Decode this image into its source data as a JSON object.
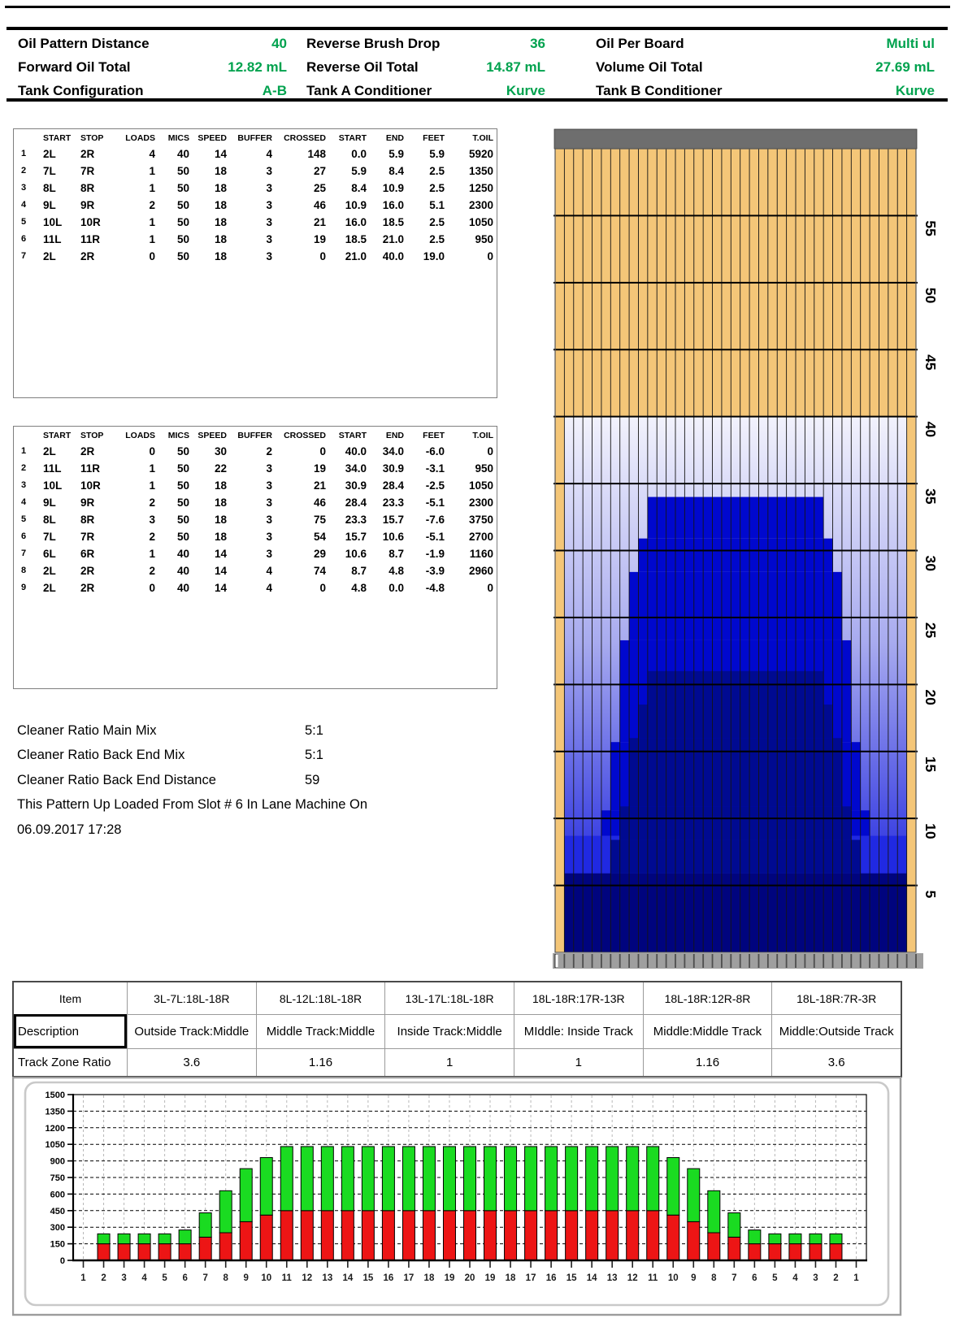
{
  "header": {
    "value_color": "#00A24E",
    "cells": [
      {
        "label": "Oil Pattern Distance",
        "value": "40"
      },
      {
        "label": "Reverse Brush Drop",
        "value": "36"
      },
      {
        "label": "Oil Per Board",
        "value": "Multi ul"
      },
      {
        "label": "Forward Oil Total",
        "value": "12.82 mL"
      },
      {
        "label": "Reverse Oil Total",
        "value": "14.87 mL"
      },
      {
        "label": "Volume Oil Total",
        "value": "27.69 mL"
      },
      {
        "label": "Tank Configuration",
        "value": "A-B"
      },
      {
        "label": "Tank A Conditioner",
        "value": "Kurve"
      },
      {
        "label": "Tank B Conditioner",
        "value": "Kurve"
      }
    ]
  },
  "forward_table": {
    "headers": [
      "",
      "START",
      "STOP",
      "LOADS",
      "MICS",
      "SPEED",
      "BUFFER",
      "CROSSED",
      "START",
      "END",
      "FEET",
      "T.OIL"
    ],
    "rows": [
      [
        "1",
        "2L",
        "2R",
        "4",
        "40",
        "14",
        "4",
        "148",
        "0.0",
        "5.9",
        "5.9",
        "5920"
      ],
      [
        "2",
        "7L",
        "7R",
        "1",
        "50",
        "18",
        "3",
        "27",
        "5.9",
        "8.4",
        "2.5",
        "1350"
      ],
      [
        "3",
        "8L",
        "8R",
        "1",
        "50",
        "18",
        "3",
        "25",
        "8.4",
        "10.9",
        "2.5",
        "1250"
      ],
      [
        "4",
        "9L",
        "9R",
        "2",
        "50",
        "18",
        "3",
        "46",
        "10.9",
        "16.0",
        "5.1",
        "2300"
      ],
      [
        "5",
        "10L",
        "10R",
        "1",
        "50",
        "18",
        "3",
        "21",
        "16.0",
        "18.5",
        "2.5",
        "1050"
      ],
      [
        "6",
        "11L",
        "11R",
        "1",
        "50",
        "18",
        "3",
        "19",
        "18.5",
        "21.0",
        "2.5",
        "950"
      ],
      [
        "7",
        "2L",
        "2R",
        "0",
        "50",
        "18",
        "3",
        "0",
        "21.0",
        "40.0",
        "19.0",
        "0"
      ]
    ]
  },
  "reverse_table": {
    "headers": [
      "",
      "START",
      "STOP",
      "LOADS",
      "MICS",
      "SPEED",
      "BUFFER",
      "CROSSED",
      "START",
      "END",
      "FEET",
      "T.OIL"
    ],
    "rows": [
      [
        "1",
        "2L",
        "2R",
        "0",
        "50",
        "30",
        "2",
        "0",
        "40.0",
        "34.0",
        "-6.0",
        "0"
      ],
      [
        "2",
        "11L",
        "11R",
        "1",
        "50",
        "22",
        "3",
        "19",
        "34.0",
        "30.9",
        "-3.1",
        "950"
      ],
      [
        "3",
        "10L",
        "10R",
        "1",
        "50",
        "18",
        "3",
        "21",
        "30.9",
        "28.4",
        "-2.5",
        "1050"
      ],
      [
        "4",
        "9L",
        "9R",
        "2",
        "50",
        "18",
        "3",
        "46",
        "28.4",
        "23.3",
        "-5.1",
        "2300"
      ],
      [
        "5",
        "8L",
        "8R",
        "3",
        "50",
        "18",
        "3",
        "75",
        "23.3",
        "15.7",
        "-7.6",
        "3750"
      ],
      [
        "6",
        "7L",
        "7R",
        "2",
        "50",
        "18",
        "3",
        "54",
        "15.7",
        "10.6",
        "-5.1",
        "2700"
      ],
      [
        "7",
        "6L",
        "6R",
        "1",
        "40",
        "14",
        "3",
        "29",
        "10.6",
        "8.7",
        "-1.9",
        "1160"
      ],
      [
        "8",
        "2L",
        "2R",
        "2",
        "40",
        "14",
        "4",
        "74",
        "8.7",
        "4.8",
        "-3.9",
        "2960"
      ],
      [
        "9",
        "2L",
        "2R",
        "0",
        "40",
        "14",
        "4",
        "0",
        "4.8",
        "0.0",
        "-4.8",
        "0"
      ]
    ]
  },
  "cleaner": {
    "items": [
      {
        "label": "Cleaner Ratio Main Mix",
        "value": "5:1"
      },
      {
        "label": "Cleaner Ratio Back End Mix",
        "value": "5:1"
      },
      {
        "label": "Cleaner Ratio Back End Distance",
        "value": "59"
      }
    ],
    "note_line1": "This Pattern Up Loaded From Slot # 6 In Lane Machine On",
    "note_line2": "06.09.2017 17:28"
  },
  "zone_table": {
    "item_label": "Item",
    "desc_label": "Description",
    "ratio_label": "Track Zone Ratio",
    "columns": [
      {
        "item": "3L-7L:18L-18R",
        "desc": "Outside Track:Middle",
        "ratio": "3.6"
      },
      {
        "item": "8L-12L:18L-18R",
        "desc": "Middle Track:Middle",
        "ratio": "1.16"
      },
      {
        "item": "13L-17L:18L-18R",
        "desc": "Inside Track:Middle",
        "ratio": "1"
      },
      {
        "item": "18L-18R:17R-13R",
        "desc": "MIddle: Inside Track",
        "ratio": "1"
      },
      {
        "item": "18L-18R:12R-8R",
        "desc": "Middle:Middle Track",
        "ratio": "1.16"
      },
      {
        "item": "18L-18R:7R-3R",
        "desc": "Middle:Outside Track",
        "ratio": "3.6"
      }
    ]
  },
  "chart_data": [
    {
      "type": "heatmap",
      "title": "lane-oil-pattern-map",
      "boards": 39,
      "lane_length_ft": 60,
      "distance_ticks_ft": [
        5,
        10,
        15,
        20,
        25,
        30,
        35,
        40,
        45,
        50,
        55
      ],
      "colors": {
        "wood": "#F4C678",
        "deck": "#6E6E6E",
        "apron": "#9F9F9F",
        "reverse": "#0008CE",
        "forward": "#000A91",
        "heavy": "#00047E",
        "skirt": "#2029E2",
        "light_top": "#F2F2FC",
        "light_mid": "#A8ABEF",
        "light_low": "#2B31E0"
      },
      "buff_region": {
        "from_ft": 0,
        "to_ft": 40,
        "left_board": 2,
        "right_board": 38
      },
      "reverse_oil_steps": [
        {
          "from_ft": 30.9,
          "to_ft": 34.0,
          "left_board": 11,
          "right_board": 29
        },
        {
          "from_ft": 28.4,
          "to_ft": 30.9,
          "left_board": 10,
          "right_board": 30
        },
        {
          "from_ft": 23.3,
          "to_ft": 28.4,
          "left_board": 9,
          "right_board": 31
        },
        {
          "from_ft": 15.7,
          "to_ft": 23.3,
          "left_board": 8,
          "right_board": 32
        },
        {
          "from_ft": 10.6,
          "to_ft": 15.7,
          "left_board": 7,
          "right_board": 33
        },
        {
          "from_ft": 8.7,
          "to_ft": 10.6,
          "left_board": 6,
          "right_board": 34
        },
        {
          "from_ft": 0,
          "to_ft": 8.7,
          "left_board": 2,
          "right_board": 38,
          "skirt": true
        }
      ],
      "forward_oil_steps": [
        {
          "from_ft": 18.5,
          "to_ft": 21.0,
          "left_board": 11,
          "right_board": 29
        },
        {
          "from_ft": 16.0,
          "to_ft": 18.5,
          "left_board": 10,
          "right_board": 30
        },
        {
          "from_ft": 10.9,
          "to_ft": 16.0,
          "left_board": 9,
          "right_board": 31
        },
        {
          "from_ft": 8.4,
          "to_ft": 10.9,
          "left_board": 8,
          "right_board": 32
        },
        {
          "from_ft": 5.9,
          "to_ft": 8.4,
          "left_board": 7,
          "right_board": 33
        },
        {
          "from_ft": 0,
          "to_ft": 5.9,
          "left_board": 2,
          "right_board": 38,
          "heavy": true
        }
      ]
    },
    {
      "type": "bar",
      "stacked": true,
      "title": "oil-per-board",
      "categories": [
        "1",
        "2",
        "3",
        "4",
        "5",
        "6",
        "7",
        "8",
        "9",
        "10",
        "11",
        "12",
        "13",
        "14",
        "15",
        "16",
        "17",
        "18",
        "19",
        "20",
        "19",
        "18",
        "17",
        "16",
        "15",
        "14",
        "13",
        "12",
        "11",
        "10",
        "9",
        "8",
        "7",
        "6",
        "5",
        "4",
        "3",
        "2",
        "1"
      ],
      "series": [
        {
          "name": "forward_oil_ul",
          "color": "#ED1515",
          "values": [
            0,
            150,
            150,
            150,
            150,
            150,
            210,
            250,
            350,
            410,
            450,
            450,
            450,
            450,
            450,
            450,
            450,
            450,
            450,
            450,
            450,
            450,
            450,
            450,
            450,
            450,
            450,
            450,
            450,
            410,
            350,
            250,
            210,
            150,
            150,
            150,
            150,
            150,
            0
          ]
        },
        {
          "name": "reverse_oil_ul",
          "color": "#1ADB21",
          "values": [
            0,
            90,
            90,
            90,
            90,
            125,
            220,
            380,
            480,
            520,
            580,
            580,
            580,
            580,
            580,
            580,
            580,
            580,
            580,
            580,
            580,
            580,
            580,
            580,
            580,
            580,
            580,
            580,
            580,
            520,
            480,
            380,
            220,
            125,
            90,
            90,
            90,
            90,
            0
          ]
        }
      ],
      "ylim": [
        0,
        1500
      ],
      "yticks": [
        0,
        150,
        300,
        450,
        600,
        750,
        900,
        1050,
        1200,
        1350,
        1500
      ],
      "grid": true,
      "legend": false
    }
  ]
}
